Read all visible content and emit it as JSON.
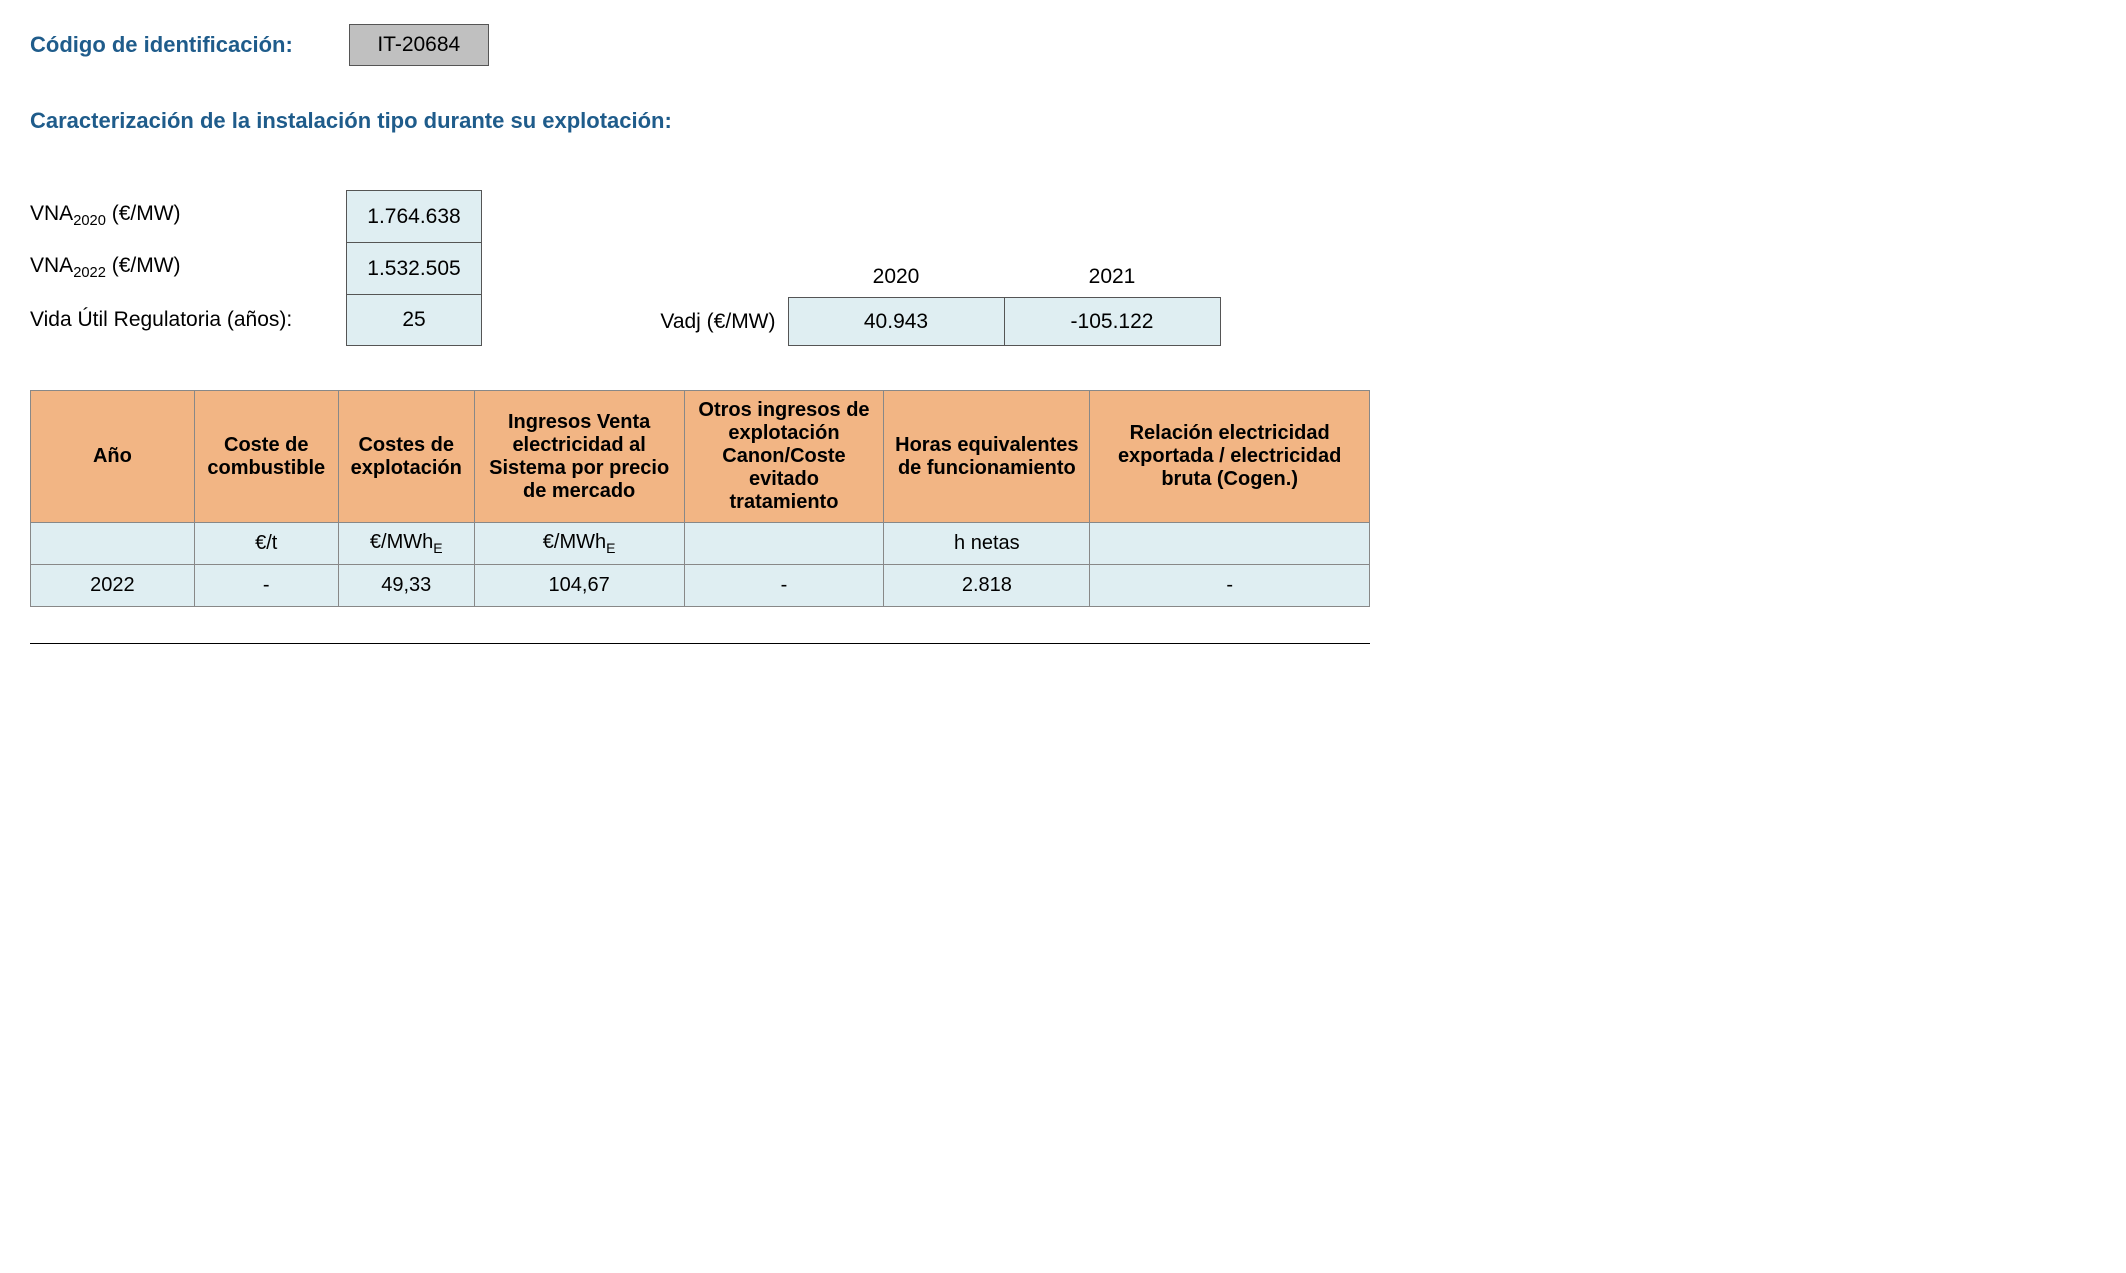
{
  "header": {
    "code_label": "Código de identificación:",
    "code_value": "IT-20684"
  },
  "section_title": "Caracterización de la instalación tipo durante su explotación:",
  "params": {
    "vna2020_label_prefix": "VNA",
    "vna2020_sub": "2020",
    "vna2020_label_suffix": " (€/MW)",
    "vna2020_value": "1.764.638",
    "vna2022_label_prefix": "VNA",
    "vna2022_sub": "2022",
    "vna2022_label_suffix": " (€/MW)",
    "vna2022_value": "1.532.505",
    "vida_util_label": "Vida Útil Regulatoria (años):",
    "vida_util_value": "25"
  },
  "vadj": {
    "label": "Vadj (€/MW)",
    "years": [
      "2020",
      "2021"
    ],
    "values": [
      "40.943",
      "-105.122"
    ]
  },
  "main_table": {
    "headers": {
      "ano": "Año",
      "comb": "Coste de combustible",
      "expl": "Costes de explotación",
      "ingr": "Ingresos Venta electricidad al Sistema por precio de mercado",
      "otros": "Otros ingresos de explotación Canon/Coste evitado tratamiento",
      "horas": "Horas equivalentes de funcionamiento",
      "rel": "Relación electricidad exportada / electricidad bruta (Cogen.)"
    },
    "units": {
      "ano": "",
      "comb": "€/t",
      "expl_prefix": "€/MWh",
      "expl_sub": "E",
      "ingr_prefix": "€/MWh",
      "ingr_sub": "E",
      "otros": "",
      "horas": "h netas",
      "rel": ""
    },
    "row": {
      "ano": "2022",
      "comb": "-",
      "expl": "49,33",
      "ingr": "104,67",
      "otros": "-",
      "horas": "2.818",
      "rel": "-"
    }
  },
  "colors": {
    "heading_blue": "#1f5c8b",
    "code_box_bg": "#c0c0c0",
    "value_box_bg": "#dfeef2",
    "table_header_bg": "#f2b584"
  }
}
